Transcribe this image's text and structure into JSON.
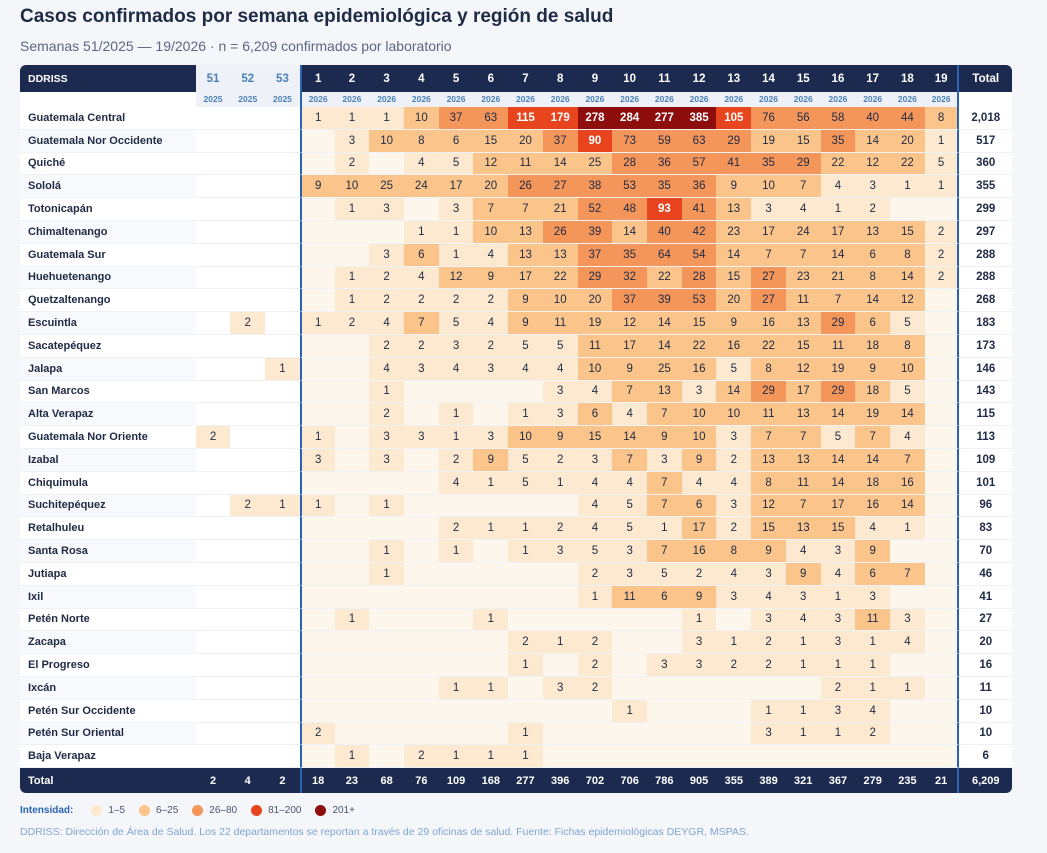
{
  "title": "Casos confirmados por semana epidemiológica y región de salud",
  "subtitle": "Semanas 51/2025 — 19/2026 · n = 6,209 confirmados por laboratorio",
  "chart_data": {
    "type": "heatmap",
    "row_header": "DDRISS",
    "total_label": "Total",
    "weeks": [
      {
        "week": "51",
        "year": "2025"
      },
      {
        "week": "52",
        "year": "2025"
      },
      {
        "week": "53",
        "year": "2025"
      },
      {
        "week": "1",
        "year": "2026"
      },
      {
        "week": "2",
        "year": "2026"
      },
      {
        "week": "3",
        "year": "2026"
      },
      {
        "week": "4",
        "year": "2026"
      },
      {
        "week": "5",
        "year": "2026"
      },
      {
        "week": "6",
        "year": "2026"
      },
      {
        "week": "7",
        "year": "2026"
      },
      {
        "week": "8",
        "year": "2026"
      },
      {
        "week": "9",
        "year": "2026"
      },
      {
        "week": "10",
        "year": "2026"
      },
      {
        "week": "11",
        "year": "2026"
      },
      {
        "week": "12",
        "year": "2026"
      },
      {
        "week": "13",
        "year": "2026"
      },
      {
        "week": "14",
        "year": "2026"
      },
      {
        "week": "15",
        "year": "2026"
      },
      {
        "week": "16",
        "year": "2026"
      },
      {
        "week": "17",
        "year": "2026"
      },
      {
        "week": "18",
        "year": "2026"
      },
      {
        "week": "19",
        "year": "2026"
      }
    ],
    "rows": [
      {
        "name": "Guatemala Central",
        "values": [
          null,
          null,
          null,
          1,
          1,
          1,
          10,
          37,
          63,
          115,
          179,
          278,
          284,
          277,
          385,
          105,
          76,
          56,
          58,
          40,
          44,
          8
        ],
        "total": "2,018"
      },
      {
        "name": "Guatemala Nor Occidente",
        "values": [
          null,
          null,
          null,
          null,
          3,
          10,
          8,
          6,
          15,
          20,
          37,
          90,
          73,
          59,
          63,
          29,
          19,
          15,
          35,
          14,
          20,
          1
        ],
        "total": "517"
      },
      {
        "name": "Quiché",
        "values": [
          null,
          null,
          null,
          null,
          2,
          null,
          4,
          5,
          12,
          11,
          14,
          25,
          28,
          36,
          57,
          41,
          35,
          29,
          22,
          12,
          22,
          5
        ],
        "total": "360"
      },
      {
        "name": "Sololá",
        "values": [
          null,
          null,
          null,
          9,
          10,
          25,
          24,
          17,
          20,
          26,
          27,
          38,
          53,
          35,
          36,
          9,
          10,
          7,
          4,
          3,
          1,
          1
        ],
        "total": "355"
      },
      {
        "name": "Totonicapán",
        "values": [
          null,
          null,
          null,
          null,
          1,
          3,
          null,
          3,
          7,
          7,
          21,
          52,
          48,
          93,
          41,
          13,
          3,
          4,
          1,
          2,
          null,
          null
        ],
        "total": "299"
      },
      {
        "name": "Chimaltenango",
        "values": [
          null,
          null,
          null,
          null,
          null,
          null,
          1,
          1,
          10,
          13,
          26,
          39,
          14,
          40,
          42,
          23,
          17,
          24,
          17,
          13,
          15,
          2
        ],
        "total": "297"
      },
      {
        "name": "Guatemala Sur",
        "values": [
          null,
          null,
          null,
          null,
          null,
          3,
          6,
          1,
          4,
          13,
          13,
          37,
          35,
          64,
          54,
          14,
          7,
          7,
          14,
          6,
          8,
          2
        ],
        "total": "288"
      },
      {
        "name": "Huehuetenango",
        "values": [
          null,
          null,
          null,
          null,
          1,
          2,
          4,
          12,
          9,
          17,
          22,
          29,
          32,
          22,
          28,
          15,
          27,
          23,
          21,
          8,
          14,
          2
        ],
        "total": "288"
      },
      {
        "name": "Quetzaltenango",
        "values": [
          null,
          null,
          null,
          null,
          1,
          2,
          2,
          2,
          2,
          9,
          10,
          20,
          37,
          39,
          53,
          20,
          27,
          11,
          7,
          14,
          12,
          null
        ],
        "total": "268"
      },
      {
        "name": "Escuintla",
        "values": [
          null,
          2,
          null,
          1,
          2,
          4,
          7,
          5,
          4,
          9,
          11,
          19,
          12,
          14,
          15,
          9,
          16,
          13,
          29,
          6,
          5,
          null
        ],
        "total": "183"
      },
      {
        "name": "Sacatepéquez",
        "values": [
          null,
          null,
          null,
          null,
          null,
          2,
          2,
          3,
          2,
          5,
          5,
          11,
          17,
          14,
          22,
          16,
          22,
          15,
          11,
          18,
          8,
          null
        ],
        "total": "173"
      },
      {
        "name": "Jalapa",
        "values": [
          null,
          null,
          1,
          null,
          null,
          4,
          3,
          4,
          3,
          4,
          4,
          10,
          9,
          25,
          16,
          5,
          8,
          12,
          19,
          9,
          10,
          null
        ],
        "total": "146"
      },
      {
        "name": "San Marcos",
        "values": [
          null,
          null,
          null,
          null,
          null,
          1,
          null,
          null,
          null,
          null,
          3,
          4,
          7,
          13,
          3,
          14,
          29,
          17,
          29,
          18,
          5,
          null
        ],
        "total": "143"
      },
      {
        "name": "Alta Verapaz",
        "values": [
          null,
          null,
          null,
          null,
          null,
          2,
          null,
          1,
          null,
          1,
          3,
          6,
          4,
          7,
          10,
          10,
          11,
          13,
          14,
          19,
          14,
          null
        ],
        "total": "115"
      },
      {
        "name": "Guatemala Nor Oriente",
        "values": [
          2,
          null,
          null,
          1,
          null,
          3,
          3,
          1,
          3,
          10,
          9,
          15,
          14,
          9,
          10,
          3,
          7,
          7,
          5,
          7,
          4,
          null
        ],
        "total": "113"
      },
      {
        "name": "Izabal",
        "values": [
          null,
          null,
          null,
          3,
          null,
          3,
          null,
          2,
          9,
          5,
          2,
          3,
          7,
          3,
          9,
          2,
          13,
          13,
          14,
          14,
          7,
          null
        ],
        "total": "109"
      },
      {
        "name": "Chiquimula",
        "values": [
          null,
          null,
          null,
          null,
          null,
          null,
          null,
          4,
          1,
          5,
          1,
          4,
          4,
          7,
          4,
          4,
          8,
          11,
          14,
          18,
          16,
          null
        ],
        "total": "101"
      },
      {
        "name": "Suchitepéquez",
        "values": [
          null,
          2,
          1,
          1,
          null,
          1,
          null,
          null,
          null,
          null,
          null,
          4,
          5,
          7,
          6,
          3,
          12,
          7,
          17,
          16,
          14,
          null
        ],
        "total": "96"
      },
      {
        "name": "Retalhuleu",
        "values": [
          null,
          null,
          null,
          null,
          null,
          null,
          null,
          2,
          1,
          1,
          2,
          4,
          5,
          1,
          17,
          2,
          15,
          13,
          15,
          4,
          1,
          null
        ],
        "total": "83"
      },
      {
        "name": "Santa Rosa",
        "values": [
          null,
          null,
          null,
          null,
          null,
          1,
          null,
          1,
          null,
          1,
          3,
          5,
          3,
          7,
          16,
          8,
          9,
          4,
          3,
          9,
          null,
          null
        ],
        "total": "70"
      },
      {
        "name": "Jutiapa",
        "values": [
          null,
          null,
          null,
          null,
          null,
          1,
          null,
          null,
          null,
          null,
          null,
          2,
          3,
          5,
          2,
          4,
          3,
          9,
          4,
          6,
          7,
          null
        ],
        "total": "46"
      },
      {
        "name": "Ixil",
        "values": [
          null,
          null,
          null,
          null,
          null,
          null,
          null,
          null,
          null,
          null,
          null,
          1,
          11,
          6,
          9,
          3,
          4,
          3,
          1,
          3,
          null,
          null
        ],
        "total": "41"
      },
      {
        "name": "Petén Norte",
        "values": [
          null,
          null,
          null,
          null,
          1,
          null,
          null,
          null,
          1,
          null,
          null,
          null,
          null,
          null,
          1,
          null,
          3,
          4,
          3,
          11,
          3,
          null
        ],
        "total": "27"
      },
      {
        "name": "Zacapa",
        "values": [
          null,
          null,
          null,
          null,
          null,
          null,
          null,
          null,
          null,
          2,
          1,
          2,
          null,
          null,
          3,
          1,
          2,
          1,
          3,
          1,
          4,
          null
        ],
        "total": "20"
      },
      {
        "name": "El Progreso",
        "values": [
          null,
          null,
          null,
          null,
          null,
          null,
          null,
          null,
          null,
          1,
          null,
          2,
          null,
          3,
          3,
          2,
          2,
          1,
          1,
          1,
          null,
          null
        ],
        "total": "16"
      },
      {
        "name": "Ixcán",
        "values": [
          null,
          null,
          null,
          null,
          null,
          null,
          null,
          1,
          1,
          null,
          3,
          2,
          null,
          null,
          null,
          null,
          null,
          null,
          2,
          1,
          1,
          null
        ],
        "total": "11"
      },
      {
        "name": "Petén Sur Occidente",
        "values": [
          null,
          null,
          null,
          null,
          null,
          null,
          null,
          null,
          null,
          null,
          null,
          null,
          1,
          null,
          null,
          null,
          1,
          1,
          3,
          4,
          null,
          null
        ],
        "total": "10"
      },
      {
        "name": "Petén Sur Oriental",
        "values": [
          null,
          null,
          null,
          2,
          null,
          null,
          null,
          null,
          null,
          1,
          null,
          null,
          null,
          null,
          null,
          null,
          3,
          1,
          1,
          2,
          null,
          null
        ],
        "total": "10"
      },
      {
        "name": "Baja Verapaz",
        "values": [
          null,
          null,
          null,
          null,
          1,
          null,
          2,
          1,
          1,
          1,
          null,
          null,
          null,
          null,
          null,
          null,
          null,
          null,
          null,
          null,
          null,
          null
        ],
        "total": "6"
      }
    ],
    "totals": [
      "2",
      "4",
      "2",
      "18",
      "23",
      "68",
      "76",
      "109",
      "168",
      "277",
      "396",
      "702",
      "706",
      "786",
      "905",
      "355",
      "389",
      "321",
      "367",
      "279",
      "235",
      "21"
    ],
    "grand_total": "6,209",
    "scale": [
      {
        "label": "1–5",
        "min": 1,
        "max": 5,
        "color": "#fde9cf"
      },
      {
        "label": "6–25",
        "min": 6,
        "max": 25,
        "color": "#fbc48a"
      },
      {
        "label": "26–80",
        "min": 26,
        "max": 80,
        "color": "#f4955a"
      },
      {
        "label": "81–200",
        "min": 81,
        "max": 200,
        "color": "#e8451f"
      },
      {
        "label": "201+",
        "min": 201,
        "max": 100000,
        "color": "#8e0d0d"
      }
    ],
    "empty_color": "#fdf6ec"
  },
  "legend": {
    "label": "Intensidad:"
  },
  "footnote": "DDRISS: Dirección de Área de Salud. Los 22 departamentos se reportan a través de 29 oficinas de salud. Fuente: Fichas epidemiológicas DEYGR, MSPAS."
}
